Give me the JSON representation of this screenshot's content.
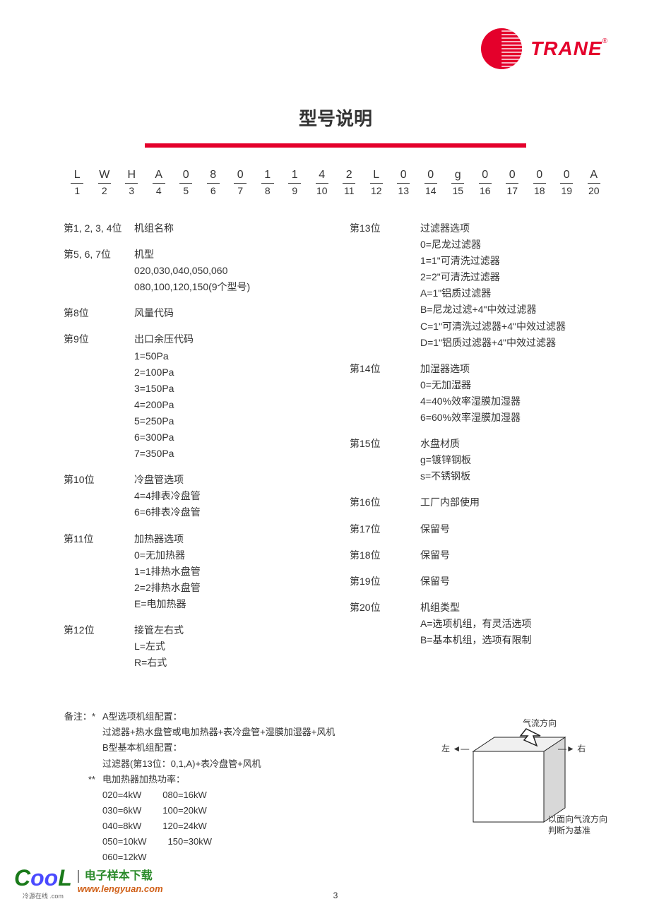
{
  "brand": {
    "name": "TRANE",
    "reg": "®",
    "logo_color": "#e4002b"
  },
  "title": "型号说明",
  "rule_color": "#e4002b",
  "code": {
    "top": [
      "L",
      "W",
      "H",
      "A",
      "0",
      "8",
      "0",
      "1",
      "1",
      "4",
      "2",
      "L",
      "0",
      "0",
      "g",
      "0",
      "0",
      "0",
      "0",
      "A"
    ],
    "bottom": [
      "1",
      "2",
      "3",
      "4",
      "5",
      "6",
      "7",
      "8",
      "9",
      "10",
      "11",
      "12",
      "13",
      "14",
      "15",
      "16",
      "17",
      "18",
      "19",
      "20"
    ]
  },
  "left_col": [
    {
      "label": "第1, 2, 3, 4位",
      "title": "机组名称",
      "lines": []
    },
    {
      "label": "第5, 6, 7位",
      "title": "机型",
      "lines": [
        "020,030,040,050,060",
        "080,100,120,150(9个型号)"
      ]
    },
    {
      "label": "第8位",
      "title": "风量代码",
      "lines": []
    },
    {
      "label": "第9位",
      "title": "出口余压代码",
      "lines": [
        "1=50Pa",
        "2=100Pa",
        "3=150Pa",
        "4=200Pa",
        "5=250Pa",
        "6=300Pa",
        "7=350Pa"
      ]
    },
    {
      "label": "第10位",
      "title": "冷盘管选项",
      "lines": [
        "4=4排表冷盘管",
        "6=6排表冷盘管"
      ]
    },
    {
      "label": "第11位",
      "title": "加热器选项",
      "lines": [
        "0=无加热器",
        "1=1排热水盘管",
        "2=2排热水盘管",
        "E=电加热器"
      ]
    },
    {
      "label": "第12位",
      "title": "接管左右式",
      "lines": [
        "L=左式",
        "R=右式"
      ]
    }
  ],
  "right_col": [
    {
      "label": "第13位",
      "title": "过滤器选项",
      "lines": [
        "0=尼龙过滤器",
        "1=1\"可清洗过滤器",
        "2=2\"可清洗过滤器",
        "A=1\"铝质过滤器",
        "B=尼龙过滤+4\"中效过滤器",
        "C=1\"可清洗过滤器+4\"中效过滤器",
        "D=1\"铝质过滤器+4\"中效过滤器"
      ]
    },
    {
      "label": "第14位",
      "title": "加湿器选项",
      "lines": [
        "0=无加湿器",
        "4=40%效率湿膜加湿器",
        "6=60%效率湿膜加湿器"
      ]
    },
    {
      "label": "第15位",
      "title": "水盘材质",
      "lines": [
        "g=镀锌钢板",
        "s=不锈钢板"
      ]
    },
    {
      "label": "第16位",
      "title": "工厂内部使用",
      "lines": []
    },
    {
      "label": "第17位",
      "title": "保留号",
      "lines": []
    },
    {
      "label": "第18位",
      "title": "保留号",
      "lines": []
    },
    {
      "label": "第19位",
      "title": "保留号",
      "lines": []
    },
    {
      "label": "第20位",
      "title": "机组类型",
      "lines": [
        "A=选项机组，有灵活选项",
        "B=基本机组，选项有限制"
      ]
    }
  ],
  "notes": {
    "prefix": "备注：",
    "star1": "*",
    "star2": "**",
    "a_title": "A型选项机组配置：",
    "a_body": "过滤器+热水盘管或电加热器+表冷盘管+湿膜加湿器+风机",
    "b_title": "B型基本机组配置：",
    "b_body": "过滤器(第13位：0,1,A)+表冷盘管+风机",
    "power_title": "电加热器加热功率：",
    "kw_left": [
      "020=4kW",
      "030=6kW",
      "040=8kW",
      "050=10kW",
      "060=12kW"
    ],
    "kw_right": [
      "080=16kW",
      "100=20kW",
      "120=24kW",
      "150=30kW"
    ]
  },
  "diagram": {
    "airflow": "气流方向",
    "left": "左",
    "right": "右",
    "caption1": "以面向气流方向",
    "caption2": "判断为基准",
    "stroke": "#222222",
    "fill_top": "#f0f0f0",
    "fill_side": "#d8d8d8",
    "fill_front": "#ffffff"
  },
  "footer": {
    "page": "3",
    "cool": "CooL",
    "cool_sub": "冷源在线 .com",
    "cool_title": "电子样本下载",
    "cool_url": "www.lengyuan.com"
  },
  "colors": {
    "text": "#333333",
    "accent": "#e4002b",
    "bg": "#ffffff"
  },
  "fonts": {
    "title_size": 26,
    "body_size": 14,
    "notes_size": 13
  }
}
